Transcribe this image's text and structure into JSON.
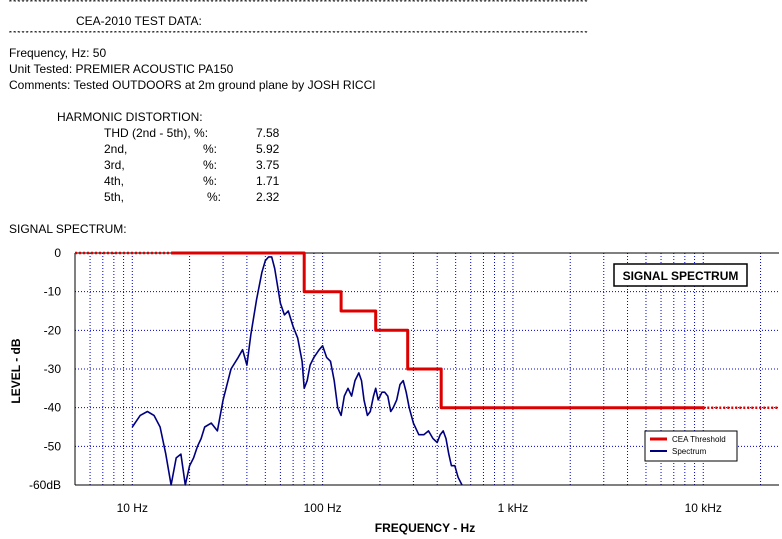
{
  "report": {
    "separator": "************************************************************************************************************************************************************************",
    "title": "CEA-2010 TEST DATA:",
    "frequency_line": "Frequency, Hz:  50",
    "unit_line": "Unit Tested: PREMIER ACOUSTIC PA150",
    "comments_line": "Comments: Tested OUTDOORS at 2m ground plane by JOSH RICCI",
    "harmonic_heading": "HARMONIC DISTORTION:",
    "harmonics": [
      {
        "label": "THD (2nd - 5th), %:",
        "value": "7.58"
      },
      {
        "label": "2nd,",
        "unit": "%:",
        "value": "5.92"
      },
      {
        "label": "3rd,",
        "unit": "%:",
        "value": "3.75"
      },
      {
        "label": "4th,",
        "unit": "%:",
        "value": "1.71"
      },
      {
        "label": "5th,",
        "unit": "%:",
        "value": "2.32"
      }
    ],
    "spectrum_heading": "SIGNAL SPECTRUM:"
  },
  "chart_data": {
    "type": "line",
    "title": "SIGNAL SPECTRUM",
    "xlabel": "FREQUENCY - Hz",
    "ylabel": "LEVEL - dB",
    "x_scale": "log",
    "xlim": [
      5,
      25000
    ],
    "ylim": [
      -60,
      0
    ],
    "x_ticks": [
      {
        "value": 10,
        "label": "10  Hz"
      },
      {
        "value": 100,
        "label": "100  Hz"
      },
      {
        "value": 1000,
        "label": "1 kHz"
      },
      {
        "value": 10000,
        "label": "10 kHz"
      }
    ],
    "y_ticks": [
      {
        "value": 0,
        "label": "0"
      },
      {
        "value": -10,
        "label": "-10"
      },
      {
        "value": -20,
        "label": "-20"
      },
      {
        "value": -30,
        "label": "-30"
      },
      {
        "value": -40,
        "label": "-40"
      },
      {
        "value": -50,
        "label": "-50"
      },
      {
        "value": -60,
        "label": "-60dB"
      }
    ],
    "grid": true,
    "legend_position": "bottom-right",
    "series": [
      {
        "name": "CEA Threshold",
        "color": "#dd0000",
        "style": "step",
        "points": [
          [
            16,
            0
          ],
          [
            80,
            0
          ],
          [
            80,
            -10
          ],
          [
            125,
            -10
          ],
          [
            125,
            -15
          ],
          [
            190,
            -15
          ],
          [
            190,
            -20
          ],
          [
            280,
            -20
          ],
          [
            280,
            -30
          ],
          [
            420,
            -30
          ],
          [
            420,
            -40
          ],
          [
            10000,
            -40
          ]
        ],
        "dotted_left": [
          [
            5,
            0
          ],
          [
            16,
            0
          ]
        ],
        "dotted_right": [
          [
            10000,
            -40
          ],
          [
            25000,
            -40
          ]
        ]
      },
      {
        "name": "Spectrum",
        "color": "#00007f",
        "style": "line",
        "points": [
          [
            10,
            -45
          ],
          [
            11,
            -42
          ],
          [
            12,
            -41
          ],
          [
            13,
            -42
          ],
          [
            14,
            -45
          ],
          [
            15,
            -52
          ],
          [
            16,
            -60
          ],
          [
            17,
            -53
          ],
          [
            18,
            -52
          ],
          [
            19,
            -60
          ],
          [
            20,
            -55
          ],
          [
            21,
            -53
          ],
          [
            22,
            -50
          ],
          [
            23,
            -48
          ],
          [
            24,
            -45
          ],
          [
            26,
            -44
          ],
          [
            28,
            -46
          ],
          [
            30,
            -38
          ],
          [
            33,
            -30
          ],
          [
            36,
            -27
          ],
          [
            38,
            -25
          ],
          [
            40,
            -29
          ],
          [
            42,
            -21
          ],
          [
            45,
            -12
          ],
          [
            48,
            -5
          ],
          [
            50,
            -2
          ],
          [
            52,
            -1
          ],
          [
            54,
            -1
          ],
          [
            56,
            -4
          ],
          [
            60,
            -13
          ],
          [
            63,
            -16
          ],
          [
            66,
            -15
          ],
          [
            70,
            -19
          ],
          [
            74,
            -22
          ],
          [
            78,
            -28
          ],
          [
            80,
            -35
          ],
          [
            83,
            -33
          ],
          [
            86,
            -29
          ],
          [
            90,
            -27
          ],
          [
            96,
            -25
          ],
          [
            100,
            -24
          ],
          [
            105,
            -27
          ],
          [
            110,
            -28
          ],
          [
            115,
            -33
          ],
          [
            120,
            -40
          ],
          [
            125,
            -42
          ],
          [
            130,
            -37
          ],
          [
            136,
            -35
          ],
          [
            142,
            -37
          ],
          [
            148,
            -33
          ],
          [
            155,
            -31
          ],
          [
            160,
            -33
          ],
          [
            165,
            -38
          ],
          [
            172,
            -42
          ],
          [
            178,
            -41
          ],
          [
            185,
            -37
          ],
          [
            190,
            -35
          ],
          [
            196,
            -38
          ],
          [
            205,
            -36
          ],
          [
            212,
            -36
          ],
          [
            220,
            -37
          ],
          [
            228,
            -41
          ],
          [
            235,
            -40
          ],
          [
            245,
            -38
          ],
          [
            255,
            -34
          ],
          [
            265,
            -33
          ],
          [
            275,
            -36
          ],
          [
            285,
            -40
          ],
          [
            300,
            -44
          ],
          [
            320,
            -47
          ],
          [
            340,
            -47
          ],
          [
            360,
            -46
          ],
          [
            380,
            -48
          ],
          [
            400,
            -49
          ],
          [
            415,
            -47
          ],
          [
            430,
            -46
          ],
          [
            445,
            -48
          ],
          [
            460,
            -52
          ],
          [
            475,
            -55
          ],
          [
            495,
            -55
          ],
          [
            515,
            -58
          ],
          [
            540,
            -60
          ]
        ]
      }
    ]
  }
}
